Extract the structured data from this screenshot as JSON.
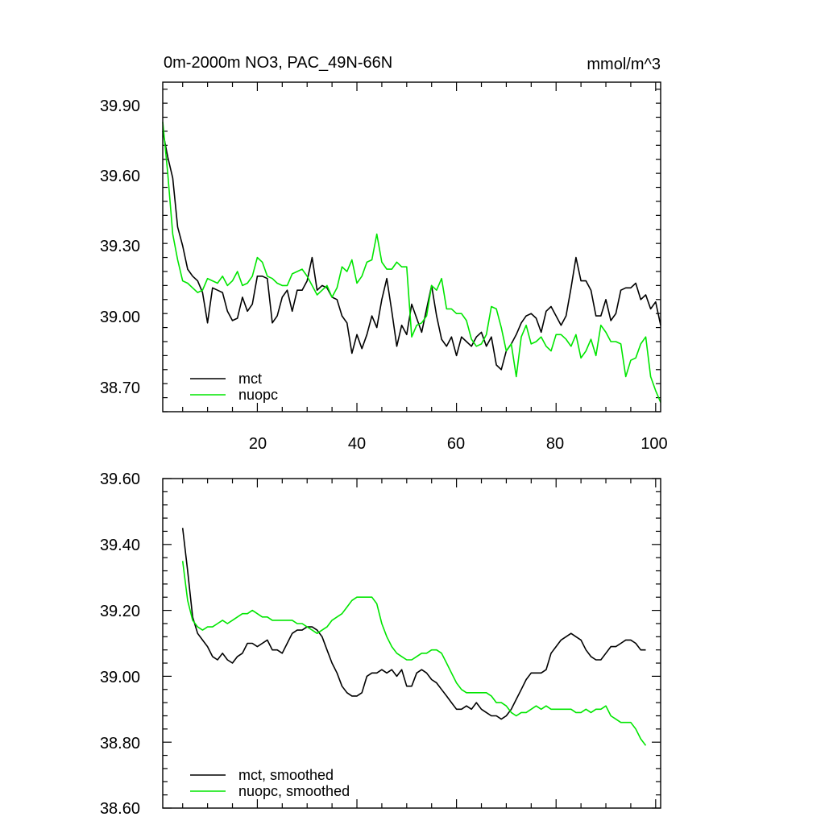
{
  "colors": {
    "mct": "#000000",
    "nuopc": "#00e600"
  },
  "chart_data": [
    {
      "type": "line",
      "title": "0m-2000m NO3, PAC_49N-66N",
      "units_label": "mmol/m^3",
      "xlabel": "",
      "ylabel": "",
      "xlim": [
        1,
        101
      ],
      "ylim": [
        38.6,
        40.01
      ],
      "x_ticks": [
        20,
        40,
        60,
        80,
        100
      ],
      "x_tick_labels": [
        "20",
        "40",
        "60",
        "80",
        "100"
      ],
      "y_ticks": [
        39.9,
        39.6,
        39.3,
        39.0,
        38.7
      ],
      "y_tick_labels": [
        "39.90",
        "39.60",
        "39.30",
        "39.00",
        "38.70"
      ],
      "legend_placement": "bottom-left",
      "series": [
        {
          "name": "mct",
          "color": "#000000",
          "values": [
            39.8,
            39.69,
            39.6,
            39.39,
            39.31,
            39.21,
            39.18,
            39.16,
            39.11,
            38.98,
            39.13,
            39.12,
            39.11,
            39.03,
            38.99,
            39.0,
            39.09,
            39.03,
            39.06,
            39.18,
            39.18,
            39.17,
            38.98,
            39.01,
            39.09,
            39.12,
            39.03,
            39.12,
            39.12,
            39.16,
            39.26,
            39.12,
            39.14,
            39.13,
            39.09,
            39.08,
            39.01,
            38.98,
            38.85,
            38.93,
            38.87,
            38.93,
            39.01,
            38.96,
            39.08,
            39.17,
            39.03,
            38.88,
            38.97,
            38.93,
            39.06,
            39.0,
            38.94,
            39.04,
            39.14,
            39.01,
            38.91,
            38.88,
            38.92,
            38.84,
            38.92,
            38.9,
            38.88,
            38.92,
            38.94,
            38.88,
            38.92,
            38.8,
            38.78,
            38.86,
            38.89,
            38.93,
            38.98,
            39.01,
            39.02,
            39.0,
            38.94,
            39.03,
            39.05,
            39.01,
            38.97,
            39.01,
            39.13,
            39.26,
            39.16,
            39.16,
            39.12,
            39.01,
            39.01,
            39.08,
            38.99,
            39.02,
            39.12,
            39.13,
            39.13,
            39.15,
            39.08,
            39.1,
            39.04,
            39.07,
            38.97
          ]
        },
        {
          "name": "nuopc",
          "color": "#00e600",
          "values": [
            39.84,
            39.62,
            39.36,
            39.25,
            39.16,
            39.15,
            39.13,
            39.11,
            39.12,
            39.17,
            39.16,
            39.15,
            39.18,
            39.14,
            39.16,
            39.2,
            39.14,
            39.15,
            39.18,
            39.26,
            39.24,
            39.18,
            39.17,
            39.15,
            39.14,
            39.14,
            39.19,
            39.2,
            39.21,
            39.18,
            39.14,
            39.1,
            39.12,
            39.14,
            39.09,
            39.13,
            39.22,
            39.2,
            39.25,
            39.15,
            39.18,
            39.24,
            39.25,
            39.36,
            39.24,
            39.21,
            39.21,
            39.24,
            39.22,
            39.22,
            38.92,
            38.97,
            38.98,
            39.01,
            39.14,
            39.12,
            39.17,
            39.04,
            39.04,
            39.02,
            39.02,
            38.99,
            38.91,
            38.88,
            38.89,
            38.93,
            39.05,
            39.04,
            38.96,
            38.86,
            38.89,
            38.75,
            38.92,
            38.97,
            38.89,
            38.9,
            38.92,
            38.88,
            38.86,
            38.93,
            38.93,
            38.91,
            38.88,
            38.93,
            38.83,
            38.86,
            38.91,
            38.84,
            38.97,
            38.94,
            38.9,
            38.9,
            38.89,
            38.75,
            38.82,
            38.83,
            38.89,
            38.92,
            38.75,
            38.69,
            38.64
          ]
        }
      ],
      "legend": [
        "mct",
        "nuopc"
      ]
    },
    {
      "type": "line",
      "title": "",
      "xlabel": "",
      "ylabel": "",
      "xlim": [
        1,
        101
      ],
      "ylim": [
        38.6,
        39.6
      ],
      "x_ticks": [
        20,
        40,
        60,
        80,
        100
      ],
      "y_ticks": [
        39.6,
        39.4,
        39.2,
        39.0,
        38.8,
        38.6
      ],
      "y_tick_labels": [
        "39.60",
        "39.40",
        "39.20",
        "39.00",
        "38.80",
        "38.60"
      ],
      "legend_placement": "bottom-left",
      "series": [
        {
          "name": "mct, smoothed",
          "color": "#000000",
          "x": [
            5,
            6,
            7,
            8,
            9,
            10,
            11,
            12,
            13,
            14,
            15,
            16,
            17,
            18,
            19,
            20,
            21,
            22,
            23,
            24,
            25,
            26,
            27,
            28,
            29,
            30,
            31,
            32,
            33,
            34,
            35,
            36,
            37,
            38,
            39,
            40,
            41,
            42,
            43,
            44,
            45,
            46,
            47,
            48,
            49,
            50,
            51,
            52,
            53,
            54,
            55,
            56,
            57,
            58,
            59,
            60,
            61,
            62,
            63,
            64,
            65,
            66,
            67,
            68,
            69,
            70,
            71,
            72,
            73,
            74,
            75,
            76,
            77,
            78,
            79,
            80,
            81,
            82,
            83,
            84,
            85,
            86,
            87,
            88,
            89,
            90,
            91,
            92,
            93,
            94,
            95,
            96,
            97,
            98
          ],
          "values": [
            39.45,
            39.32,
            39.18,
            39.13,
            39.11,
            39.09,
            39.06,
            39.05,
            39.07,
            39.05,
            39.04,
            39.06,
            39.07,
            39.1,
            39.1,
            39.09,
            39.1,
            39.11,
            39.08,
            39.08,
            39.07,
            39.1,
            39.13,
            39.14,
            39.14,
            39.15,
            39.15,
            39.14,
            39.12,
            39.08,
            39.04,
            39.01,
            38.97,
            38.95,
            38.94,
            38.94,
            38.95,
            39.0,
            39.01,
            39.01,
            39.02,
            39.01,
            39.02,
            39.0,
            39.02,
            38.97,
            38.97,
            39.01,
            39.02,
            39.01,
            38.99,
            38.98,
            38.96,
            38.94,
            38.92,
            38.9,
            38.9,
            38.91,
            38.9,
            38.92,
            38.9,
            38.89,
            38.88,
            38.88,
            38.87,
            38.88,
            38.9,
            38.93,
            38.96,
            38.99,
            39.01,
            39.01,
            39.01,
            39.02,
            39.07,
            39.09,
            39.11,
            39.12,
            39.13,
            39.12,
            39.11,
            39.08,
            39.06,
            39.05,
            39.05,
            39.07,
            39.09,
            39.09,
            39.1,
            39.11,
            39.11,
            39.1,
            39.08,
            39.08
          ]
        },
        {
          "name": "nuopc, smoothed",
          "color": "#00e600",
          "x": [
            5,
            6,
            7,
            8,
            9,
            10,
            11,
            12,
            13,
            14,
            15,
            16,
            17,
            18,
            19,
            20,
            21,
            22,
            23,
            24,
            25,
            26,
            27,
            28,
            29,
            30,
            31,
            32,
            33,
            34,
            35,
            36,
            37,
            38,
            39,
            40,
            41,
            42,
            43,
            44,
            45,
            46,
            47,
            48,
            49,
            50,
            51,
            52,
            53,
            54,
            55,
            56,
            57,
            58,
            59,
            60,
            61,
            62,
            63,
            64,
            65,
            66,
            67,
            68,
            69,
            70,
            71,
            72,
            73,
            74,
            75,
            76,
            77,
            78,
            79,
            80,
            81,
            82,
            83,
            84,
            85,
            86,
            87,
            88,
            89,
            90,
            91,
            92,
            93,
            94,
            95,
            96,
            97,
            98
          ],
          "values": [
            39.35,
            39.23,
            39.17,
            39.15,
            39.14,
            39.15,
            39.15,
            39.16,
            39.17,
            39.16,
            39.17,
            39.18,
            39.19,
            39.19,
            39.2,
            39.19,
            39.18,
            39.18,
            39.17,
            39.17,
            39.17,
            39.17,
            39.17,
            39.16,
            39.16,
            39.15,
            39.14,
            39.13,
            39.14,
            39.15,
            39.17,
            39.18,
            39.19,
            39.21,
            39.23,
            39.24,
            39.24,
            39.24,
            39.24,
            39.22,
            39.16,
            39.12,
            39.09,
            39.07,
            39.06,
            39.05,
            39.05,
            39.06,
            39.07,
            39.07,
            39.08,
            39.08,
            39.07,
            39.04,
            39.01,
            38.98,
            38.96,
            38.95,
            38.95,
            38.95,
            38.95,
            38.95,
            38.94,
            38.92,
            38.92,
            38.91,
            38.89,
            38.88,
            38.89,
            38.89,
            38.9,
            38.91,
            38.9,
            38.91,
            38.9,
            38.9,
            38.9,
            38.9,
            38.9,
            38.89,
            38.89,
            38.9,
            38.89,
            38.9,
            38.9,
            38.91,
            38.88,
            38.87,
            38.86,
            38.86,
            38.86,
            38.84,
            38.81,
            38.79
          ]
        }
      ],
      "legend": [
        "mct, smoothed",
        "nuopc, smoothed"
      ]
    }
  ]
}
